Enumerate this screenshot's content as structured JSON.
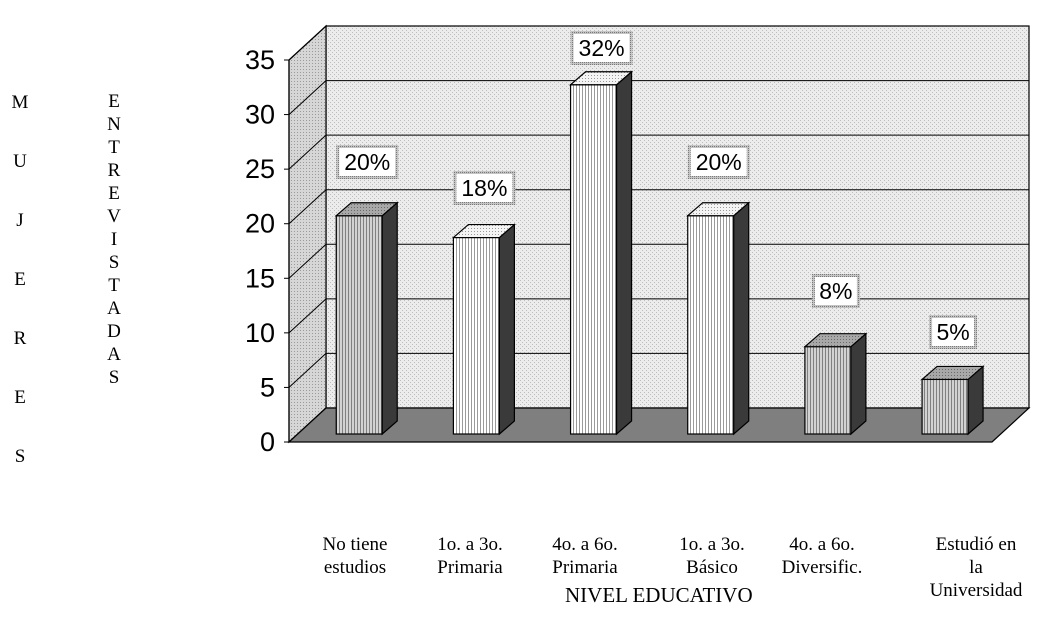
{
  "chart_data": {
    "type": "bar",
    "categories": [
      "No tiene\nestudios",
      "1o. a 3o.\nPrimaria",
      "4o. a 6o.\nPrimaria",
      "1o. a 3o.\nBásico",
      "4o. a 6o.\nDiversific.",
      "Estudió en\nla Universidad"
    ],
    "values": [
      20,
      18,
      32,
      20,
      8,
      5
    ],
    "data_labels": [
      "20%",
      "18%",
      "32%",
      "20%",
      "8%",
      "5%"
    ],
    "ylabel_letters_1": [
      "M",
      "U",
      "J",
      "E",
      "R",
      "E",
      "S"
    ],
    "ylabel_letters_2": [
      "E",
      "N",
      "T",
      "R",
      "E",
      "V",
      "I",
      "S",
      "T",
      "A",
      "D",
      "A",
      "S"
    ],
    "xlabel": "NIVEL EDUCATIVO",
    "ylim": [
      0,
      35
    ],
    "yticks": [
      "0",
      "5",
      "10",
      "15",
      "20",
      "25",
      "30",
      "35"
    ],
    "grid": true,
    "three_d": true
  }
}
